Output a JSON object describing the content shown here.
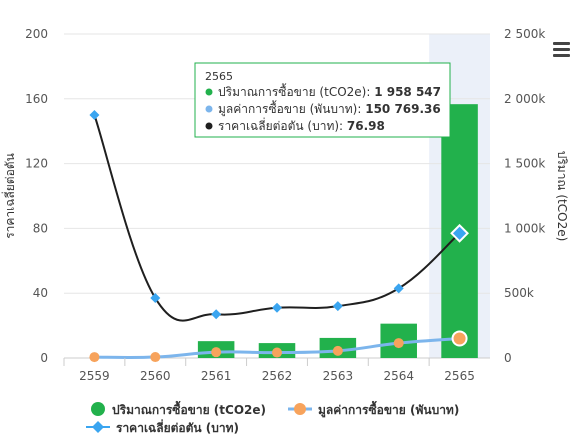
{
  "chart_data": {
    "type": "bar+line",
    "categories": [
      "2559",
      "2560",
      "2561",
      "2562",
      "2563",
      "2564",
      "2565"
    ],
    "left_axis": {
      "label": "ราคาเฉลี่ยต่อตัน",
      "min": 0,
      "max": 200,
      "ticks": [
        "0",
        "40",
        "80",
        "120",
        "160",
        "200"
      ]
    },
    "right_axis": {
      "label": "ปริมาณ (tCO2e)",
      "min": 0,
      "max": 2500000,
      "ticks": [
        "0",
        "500k",
        "1 000k",
        "1 500k",
        "2 000k",
        "2 500k"
      ]
    },
    "series": [
      {
        "name": "ปริมาณการซื้อขาย (tCO2e)",
        "type": "bar",
        "axis": "right",
        "color": "#22b14c",
        "values": [
          0,
          0,
          130000,
          115000,
          155000,
          265000,
          1958547
        ]
      },
      {
        "name": "มูลค่าการซื้อขาย (พันบาท)",
        "type": "line",
        "axis": "right",
        "color": "#f7a35c",
        "values": [
          7000,
          7500,
          45000,
          42000,
          55000,
          115000,
          150769.36
        ]
      },
      {
        "name": "ราคาเฉลี่ยต่อตัน (บาท)",
        "type": "line",
        "axis": "left",
        "color": "#1f1f1f",
        "marker_color": "#3aa5f0",
        "values": [
          150,
          37,
          27,
          31,
          32,
          43,
          76.98
        ]
      }
    ],
    "highlighted_category": "2565",
    "tooltip": {
      "title": "2565",
      "rows": [
        {
          "label": "ปริมาณการซื้อขาย (tCO2e)",
          "value": "1 958 547",
          "color": "#22b14c"
        },
        {
          "label": "มูลค่าการซื้อขาย (พันบาท)",
          "value": "150 769.36",
          "color": "#7cb5ec"
        },
        {
          "label": "ราคาเฉลี่ยต่อตัน (บาท)",
          "value": "76.98",
          "color": "#1f1f1f"
        }
      ]
    },
    "legend": {
      "placement": "bottom",
      "items": [
        "ปริมาณการซื้อขาย (tCO2e)",
        "มูลค่าการซื้อขาย (พันบาท)",
        "ราคาเฉลี่ยต่อตัน (บาท)"
      ]
    },
    "grid": true
  },
  "menu_icon": "hamburger-icon"
}
